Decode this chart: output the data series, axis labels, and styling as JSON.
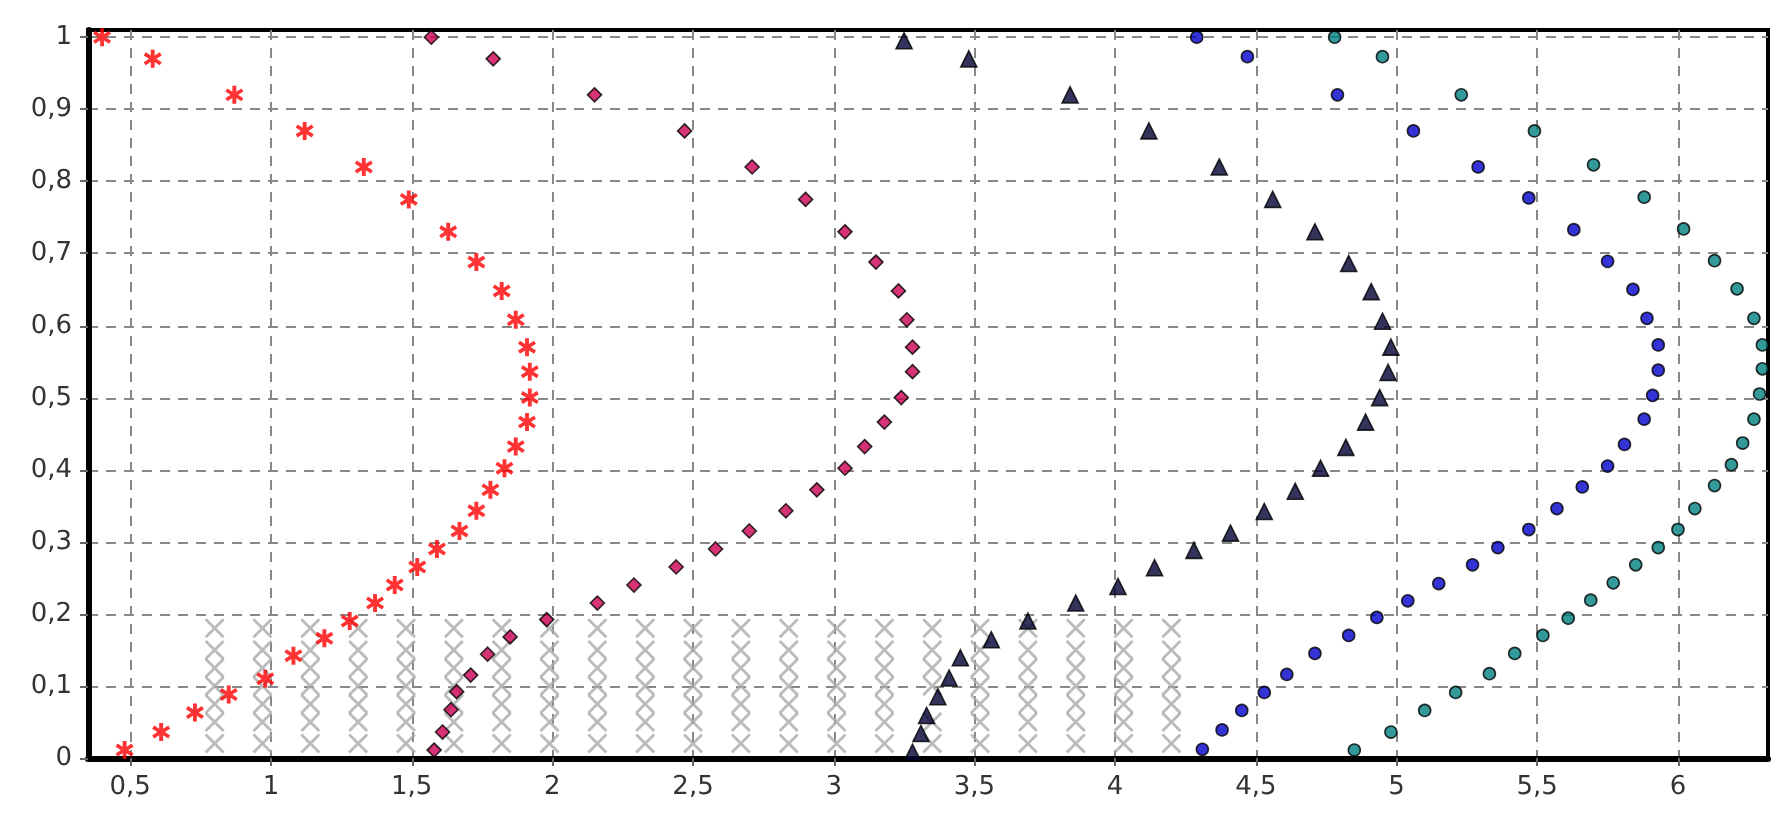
{
  "chart_data": {
    "type": "scatter",
    "grid": true,
    "xlim": [
      0.35,
      6.32
    ],
    "ylim": [
      0,
      1.01
    ],
    "xticks": [
      {
        "value": 0.5,
        "label": "0,5"
      },
      1,
      {
        "value": 1.5,
        "label": "1,5"
      },
      2,
      {
        "value": 2.5,
        "label": "2,5"
      },
      3,
      {
        "value": 3.5,
        "label": "3,5"
      },
      4,
      {
        "value": 4.5,
        "label": "4,5"
      },
      5,
      {
        "value": 5.5,
        "label": "5,5"
      },
      6
    ],
    "yticks": [
      0,
      {
        "value": 0.1,
        "label": "0,1"
      },
      {
        "value": 0.2,
        "label": "0,2"
      },
      {
        "value": 0.3,
        "label": "0,3"
      },
      {
        "value": 0.4,
        "label": "0,4"
      },
      {
        "value": 0.5,
        "label": "0,5"
      },
      {
        "value": 0.6,
        "label": "0,6"
      },
      {
        "value": 0.7,
        "label": "0,7"
      },
      {
        "value": 0.8,
        "label": "0,8"
      },
      {
        "value": 0.9,
        "label": "0,9"
      },
      1
    ],
    "series": [
      {
        "color": "#aaaaaa",
        "marker": "cross",
        "x": [
          0.8,
          0.97,
          1.14,
          1.31,
          1.48,
          1.65,
          1.82,
          1.99,
          2.16,
          2.33,
          2.5,
          2.67,
          2.84,
          3.01,
          3.18,
          3.35,
          3.52,
          3.69,
          3.86,
          4.03,
          4.2
        ],
        "values": [
          0.02,
          0.02,
          0.02,
          0.02,
          0.02,
          0.02,
          0.02,
          0.02,
          0.02,
          0.02,
          0.02,
          0.02,
          0.02,
          0.02,
          0.02,
          0.02,
          0.02,
          0.02,
          0.02,
          0.02,
          0.02
        ]
      },
      {
        "color": "#aaaaaa",
        "marker": "cross",
        "x": [
          0.8,
          0.97,
          1.14,
          1.31,
          1.48,
          1.65,
          1.82,
          1.99,
          2.16,
          2.33,
          2.5,
          2.67,
          2.84,
          3.01,
          3.18,
          3.35,
          3.52,
          3.69,
          3.86,
          4.03,
          4.2
        ],
        "values": [
          0.05,
          0.05,
          0.05,
          0.05,
          0.05,
          0.05,
          0.05,
          0.05,
          0.05,
          0.05,
          0.05,
          0.05,
          0.05,
          0.05,
          0.05,
          0.05,
          0.05,
          0.05,
          0.05,
          0.05,
          0.05
        ]
      },
      {
        "color": "#aaaaaa",
        "marker": "cross",
        "x": [
          0.8,
          0.97,
          1.14,
          1.31,
          1.48,
          1.65,
          1.82,
          1.99,
          2.16,
          2.33,
          2.5,
          2.67,
          2.84,
          3.01,
          3.18,
          3.35,
          3.52,
          3.69,
          3.86,
          4.03,
          4.2
        ],
        "values": [
          0.075,
          0.075,
          0.075,
          0.075,
          0.075,
          0.075,
          0.075,
          0.075,
          0.075,
          0.075,
          0.075,
          0.075,
          0.075,
          0.075,
          0.075,
          null,
          0.075,
          0.075,
          0.075,
          0.075,
          0.075
        ]
      },
      {
        "color": "#aaaaaa",
        "marker": "cross",
        "x": [
          0.8,
          0.97,
          1.14,
          1.31,
          1.48,
          1.65,
          1.82,
          1.99,
          2.16,
          2.33,
          2.5,
          2.67,
          2.84,
          3.01,
          3.18,
          3.35,
          3.52,
          3.69,
          3.86,
          4.03,
          4.2
        ],
        "values": [
          0.1,
          0.1,
          0.1,
          0.1,
          0.1,
          0.1,
          0.1,
          0.1,
          0.1,
          0.1,
          0.1,
          0.1,
          0.1,
          0.1,
          0.1,
          0.1,
          0.1,
          0.1,
          0.1,
          0.1,
          0.1
        ]
      },
      {
        "color": "#aaaaaa",
        "marker": "cross",
        "x": [
          0.8,
          0.97,
          1.14,
          1.31,
          1.48,
          1.65,
          1.82,
          1.99,
          2.16,
          2.33,
          2.5,
          2.67,
          2.84,
          3.01,
          3.18,
          3.35,
          3.52,
          3.69,
          3.86,
          4.03,
          4.2
        ],
        "values": [
          0.125,
          0.125,
          0.125,
          0.125,
          0.125,
          0.125,
          0.125,
          0.125,
          0.125,
          0.125,
          0.125,
          0.125,
          0.125,
          0.125,
          0.125,
          0.125,
          0.125,
          0.125,
          0.125,
          0.125,
          0.125
        ]
      },
      {
        "color": "#aaaaaa",
        "marker": "cross",
        "x": [
          0.8,
          0.97,
          1.14,
          1.31,
          1.48,
          1.65,
          1.82,
          1.99,
          2.16,
          2.33,
          2.5,
          2.67,
          2.84,
          3.01,
          3.18,
          3.35,
          3.52,
          3.69,
          3.86,
          4.03,
          4.2
        ],
        "values": [
          0.15,
          0.15,
          0.15,
          0.15,
          0.15,
          0.15,
          0.15,
          0.15,
          0.15,
          0.15,
          0.15,
          0.15,
          0.15,
          0.15,
          0.15,
          0.15,
          0.15,
          0.15,
          0.15,
          0.15,
          0.15
        ]
      },
      {
        "color": "#aaaaaa",
        "marker": "cross",
        "x": [
          0.8,
          0.97,
          1.14,
          1.31,
          1.48,
          1.65,
          1.82,
          1.99,
          2.16,
          2.33,
          2.5,
          2.67,
          2.84,
          3.01,
          3.18,
          3.35,
          3.52,
          3.69,
          3.86,
          4.03,
          4.2
        ],
        "values": [
          0.18,
          0.18,
          0.18,
          0.18,
          0.18,
          0.18,
          0.18,
          0.18,
          0.18,
          0.18,
          0.18,
          0.18,
          0.18,
          0.18,
          0.18,
          0.18,
          0.18,
          0.18,
          0.18,
          0.18,
          0.18
        ]
      },
      {
        "color": "#ff0000",
        "marker": "star",
        "x": [
          0.4,
          0.58,
          0.87,
          1.12,
          1.33,
          1.49,
          1.63,
          1.73,
          1.82,
          1.87,
          1.91,
          1.92,
          1.92,
          1.91,
          1.87,
          1.83,
          1.78,
          1.73,
          1.67,
          1.59,
          1.52,
          1.44,
          1.37,
          1.28,
          1.19,
          1.08,
          0.98,
          0.85,
          0.73,
          0.61,
          0.48
        ],
        "values": [
          1.0,
          0.97,
          0.92,
          0.87,
          0.82,
          0.775,
          0.73,
          0.688,
          0.648,
          0.608,
          0.57,
          0.536,
          0.5,
          0.466,
          0.432,
          0.402,
          0.372,
          0.343,
          0.315,
          0.29,
          0.265,
          0.24,
          0.215,
          0.19,
          0.166,
          0.142,
          0.11,
          0.088,
          0.063,
          0.036,
          0.011
        ]
      },
      {
        "color": "#cc0055",
        "marker": "diamond",
        "x": [
          1.57,
          1.79,
          2.15,
          2.47,
          2.71,
          2.9,
          3.04,
          3.15,
          3.23,
          3.26,
          3.28,
          3.28,
          3.24,
          3.18,
          3.11,
          3.04,
          2.94,
          2.83,
          2.7,
          2.58,
          2.44,
          2.29,
          2.16,
          1.98,
          1.85,
          1.77,
          1.71,
          1.66,
          1.64,
          1.61,
          1.58
        ],
        "values": [
          1.0,
          0.97,
          0.92,
          0.87,
          0.82,
          0.775,
          0.73,
          0.688,
          0.648,
          0.608,
          0.57,
          0.536,
          0.5,
          0.466,
          0.432,
          0.402,
          0.372,
          0.343,
          0.315,
          0.29,
          0.265,
          0.24,
          0.215,
          0.192,
          0.168,
          0.144,
          0.115,
          0.092,
          0.067,
          0.036,
          0.011
        ]
      },
      {
        "color": "#000033",
        "marker": "triangle",
        "x": [
          3.25,
          3.48,
          3.84,
          4.12,
          4.37,
          4.56,
          4.71,
          4.83,
          4.91,
          4.95,
          4.98,
          4.97,
          4.94,
          4.89,
          4.82,
          4.73,
          4.64,
          4.53,
          4.41,
          4.28,
          4.14,
          4.01,
          3.86,
          3.69,
          3.56,
          3.45,
          3.41,
          3.37,
          3.33,
          3.31,
          3.28
        ],
        "values": [
          0.995,
          0.97,
          0.92,
          0.87,
          0.82,
          0.775,
          0.73,
          0.686,
          0.647,
          0.606,
          0.57,
          0.535,
          0.5,
          0.466,
          0.431,
          0.402,
          0.37,
          0.342,
          0.312,
          0.288,
          0.264,
          0.238,
          0.215,
          0.19,
          0.164,
          0.139,
          0.111,
          0.085,
          0.059,
          0.034,
          0.008
        ]
      },
      {
        "color": "#0000cc",
        "marker": "circle",
        "x": [
          4.29,
          4.47,
          4.79,
          5.06,
          5.29,
          5.47,
          5.63,
          5.75,
          5.84,
          5.89,
          5.93,
          5.93,
          5.91,
          5.88,
          5.81,
          5.75,
          5.66,
          5.57,
          5.47,
          5.36,
          5.27,
          5.15,
          5.04,
          4.93,
          4.83,
          4.71,
          4.61,
          4.53,
          4.45,
          4.38,
          4.31
        ],
        "values": [
          1.0,
          0.973,
          0.92,
          0.87,
          0.82,
          0.777,
          0.733,
          0.689,
          0.65,
          0.61,
          0.573,
          0.538,
          0.503,
          0.47,
          0.435,
          0.405,
          0.376,
          0.346,
          0.317,
          0.292,
          0.268,
          0.242,
          0.218,
          0.195,
          0.17,
          0.145,
          0.116,
          0.091,
          0.066,
          0.039,
          0.012
        ]
      },
      {
        "color": "#008080",
        "marker": "circle",
        "x": [
          4.78,
          4.95,
          5.23,
          5.49,
          5.7,
          5.88,
          6.02,
          6.13,
          6.21,
          6.27,
          6.3,
          6.3,
          6.29,
          6.27,
          6.23,
          6.19,
          6.13,
          6.06,
          6.0,
          5.93,
          5.85,
          5.77,
          5.69,
          5.61,
          5.52,
          5.42,
          5.33,
          5.21,
          5.1,
          4.98,
          4.85
        ],
        "values": [
          1.0,
          0.973,
          0.92,
          0.87,
          0.823,
          0.778,
          0.734,
          0.69,
          0.651,
          0.61,
          0.573,
          0.54,
          0.505,
          0.47,
          0.437,
          0.407,
          0.378,
          0.346,
          0.317,
          0.292,
          0.268,
          0.243,
          0.219,
          0.194,
          0.17,
          0.145,
          0.117,
          0.091,
          0.066,
          0.036,
          0.011
        ]
      }
    ]
  }
}
